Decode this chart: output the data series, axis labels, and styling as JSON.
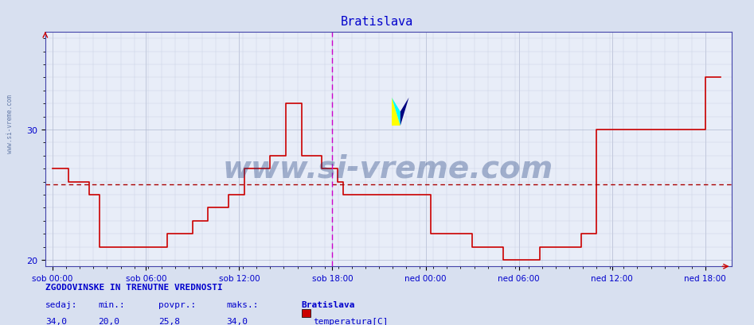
{
  "title": "Bratislava",
  "title_color": "#0000cc",
  "title_fontsize": 11,
  "ylabel": "",
  "xlabel": "",
  "ylim": [
    19.5,
    37.5
  ],
  "yticks": [
    20,
    30
  ],
  "bg_color": "#d8e0f0",
  "plot_bg_color": "#e8edf8",
  "grid_color_major": "#b0b8d0",
  "grid_color_minor": "#c8d0e0",
  "line_color": "#cc0000",
  "avg_line_color": "#aa0000",
  "avg_value": 25.8,
  "vline_color": "#cc00cc",
  "vline_x": 0.5,
  "x_tick_labels": [
    "sob 00:00",
    "sob 06:00",
    "sob 12:00",
    "sob 18:00",
    "ned 00:00",
    "ned 06:00",
    "ned 12:00",
    "ned 18:00"
  ],
  "x_tick_positions": [
    0,
    0.25,
    0.5,
    0.75,
    1.0,
    1.25,
    1.5,
    1.75
  ],
  "watermark_text": "www.si-vreme.com",
  "watermark_color": "#1a3a7a",
  "watermark_alpha": 0.35,
  "watermark_fontsize": 28,
  "left_label": "www.si-vreme.com",
  "left_label_color": "#1a3a7a",
  "footer_title": "ZGODOVINSKE IN TRENUTNE VREDNOSTI",
  "footer_sedaj": "34,0",
  "footer_min": "20,0",
  "footer_povpr": "25,8",
  "footer_maks": "34,0",
  "footer_series_name": "temperatura[C]",
  "footer_series_color": "#cc0000",
  "time_points": [
    0.0,
    0.014,
    0.028,
    0.042,
    0.056,
    0.083,
    0.097,
    0.111,
    0.125,
    0.139,
    0.153,
    0.167,
    0.208,
    0.222,
    0.236,
    0.25,
    0.264,
    0.278,
    0.292,
    0.306,
    0.32,
    0.334,
    0.375,
    0.389,
    0.403,
    0.417,
    0.431,
    0.458,
    0.472,
    0.486,
    0.5,
    0.514,
    0.528,
    0.542,
    0.556,
    0.583,
    0.597,
    0.611,
    0.625,
    0.639,
    0.653,
    0.667,
    0.708,
    0.722,
    0.736,
    0.75,
    0.764,
    0.778,
    0.792,
    0.806,
    0.833,
    0.847,
    0.875,
    0.889,
    0.903,
    0.917,
    0.931,
    0.958,
    0.972,
    0.986,
    1.0,
    1.014,
    1.028,
    1.042,
    1.056,
    1.083,
    1.097,
    1.111,
    1.125,
    1.139,
    1.153,
    1.167,
    1.208,
    1.222,
    1.236,
    1.25,
    1.264,
    1.278,
    1.292,
    1.306,
    1.32,
    1.334,
    1.375,
    1.389,
    1.403,
    1.417,
    1.431,
    1.458,
    1.472,
    1.486,
    1.5,
    1.514,
    1.528,
    1.542,
    1.556,
    1.583,
    1.597,
    1.611,
    1.625,
    1.639,
    1.653,
    1.667,
    1.708,
    1.722,
    1.736,
    1.75,
    1.764,
    1.778,
    1.792
  ],
  "temp_values": [
    27,
    27,
    27,
    26,
    26,
    26,
    25,
    25,
    21,
    21,
    21,
    21,
    21,
    21,
    21,
    21,
    21,
    21,
    21,
    22,
    22,
    22,
    23,
    23,
    23,
    24,
    24,
    24,
    25,
    25,
    25,
    27,
    27,
    27,
    27,
    28,
    28,
    28,
    32,
    32,
    32,
    28,
    28,
    27,
    27,
    27,
    26,
    25,
    25,
    25,
    25,
    25,
    25,
    25,
    25,
    25,
    25,
    25,
    25,
    25,
    25,
    22,
    22,
    22,
    22,
    22,
    22,
    22,
    21,
    21,
    21,
    21,
    20,
    20,
    20,
    20,
    20,
    20,
    20,
    21,
    21,
    21,
    21,
    21,
    21,
    22,
    22,
    30,
    30,
    30,
    30,
    30,
    30,
    30,
    30,
    30,
    30,
    30,
    30,
    30,
    30,
    30,
    30,
    30,
    30,
    34,
    34,
    34,
    34
  ]
}
